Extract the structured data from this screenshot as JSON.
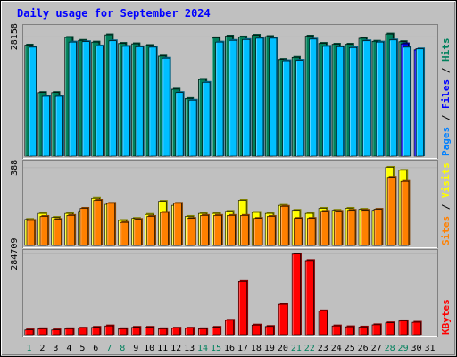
{
  "chart_data": {
    "type": "bar",
    "title": "Daily usage for September 2024",
    "categories": [
      "1",
      "2",
      "3",
      "4",
      "5",
      "6",
      "7",
      "8",
      "9",
      "10",
      "11",
      "12",
      "13",
      "14",
      "15",
      "16",
      "17",
      "18",
      "19",
      "20",
      "21",
      "22",
      "23",
      "24",
      "25",
      "26",
      "27",
      "28",
      "29",
      "30",
      "31"
    ],
    "weekend_days": [
      1,
      7,
      8,
      14,
      15,
      21,
      22,
      28,
      29
    ],
    "panels": [
      {
        "id": "hits-files-pages",
        "max_label": "28158",
        "ymax": 30300,
        "legend": [
          {
            "text": "Pages",
            "color": "#0080ff"
          },
          {
            "text": "Files",
            "color": "#0000ff"
          },
          {
            "text": "Hits",
            "color": "#00805c"
          }
        ],
        "series": [
          {
            "name": "Hits",
            "color": "#00805c",
            "values": [
              26200,
              15000,
              15000,
              28000,
              27300,
              26900,
              28600,
              26600,
              26500,
              26100,
              23600,
              15800,
              13600,
              18100,
              27900,
              28300,
              28100,
              28500,
              28200,
              22800,
              23300,
              28300,
              26600,
              26400,
              26400,
              27800,
              27100,
              28800,
              27000,
              null,
              null
            ]
          },
          {
            "name": "Files",
            "color": "#0000ff",
            "values": [
              null,
              null,
              null,
              null,
              null,
              null,
              null,
              null,
              null,
              null,
              null,
              null,
              null,
              null,
              null,
              null,
              null,
              null,
              null,
              null,
              null,
              null,
              null,
              null,
              null,
              null,
              null,
              null,
              26500,
              25100,
              null
            ]
          },
          {
            "name": "Pages",
            "color": "#00bfff",
            "values": [
              25700,
              14100,
              14100,
              26900,
              27000,
              26000,
              27200,
              25900,
              25800,
              25700,
              23100,
              15000,
              13200,
              17400,
              26900,
              27300,
              27500,
              27800,
              27800,
              22500,
              22600,
              27600,
              25900,
              25800,
              25600,
              27200,
              26900,
              27400,
              25700,
              25300,
              null
            ]
          }
        ]
      },
      {
        "id": "visits-sites",
        "max_label": "388",
        "ymax": 410,
        "legend": [
          {
            "text": "Sites",
            "color": "#ff8000"
          },
          {
            "text": "Visits",
            "color": "#ffff00"
          }
        ],
        "series": [
          {
            "name": "Visits",
            "color": "#ffff00",
            "values": [
              130,
              160,
              140,
              160,
              170,
              235,
              205,
              125,
              135,
              155,
              220,
              200,
              145,
              160,
              160,
              170,
              225,
              165,
              160,
              200,
              175,
              160,
              185,
              175,
              185,
              180,
              175,
              390,
              375,
              null,
              null
            ]
          },
          {
            "name": "Sites",
            "color": "#ff8000",
            "values": [
              125,
              145,
              130,
              150,
              185,
              225,
              210,
              115,
              130,
              145,
              165,
              210,
              135,
              150,
              150,
              150,
              150,
              135,
              145,
              195,
              135,
              135,
              170,
              170,
              175,
              175,
              180,
              340,
              320,
              null,
              null
            ]
          }
        ]
      },
      {
        "id": "kbytes",
        "max_label": "284709",
        "ymax": 290000,
        "legend": [
          {
            "text": "KBytes",
            "color": "#ff0000"
          }
        ],
        "series": [
          {
            "name": "KBytes",
            "color": "#ff0000",
            "values": [
              17000,
              21000,
              17000,
              21000,
              23000,
              26000,
              31000,
              21000,
              26000,
              26000,
              21000,
              23000,
              23000,
              21000,
              26000,
              51000,
              188000,
              34000,
              29000,
              107000,
              284709,
              262000,
              84000,
              31000,
              28000,
              27000,
              35000,
              42000,
              49000,
              44000,
              null
            ]
          }
        ]
      }
    ]
  }
}
